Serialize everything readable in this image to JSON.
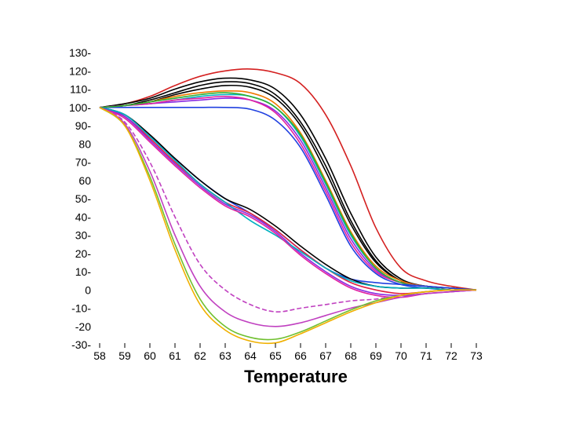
{
  "chart_data": {
    "type": "line",
    "title": "",
    "xlabel": "Temperature",
    "ylabel": "",
    "xlim": [
      58,
      73
    ],
    "ylim": [
      -30,
      130
    ],
    "x_ticks": [
      58,
      59,
      60,
      61,
      62,
      63,
      64,
      65,
      66,
      67,
      68,
      69,
      70,
      71,
      72,
      73
    ],
    "y_ticks": [
      {
        "value": 130,
        "label": "130-"
      },
      {
        "value": 120,
        "label": "120-"
      },
      {
        "value": 110,
        "label": "110-"
      },
      {
        "value": 100,
        "label": "100-"
      },
      {
        "value": 90,
        "label": "90-"
      },
      {
        "value": 80,
        "label": "80"
      },
      {
        "value": 70,
        "label": "70-"
      },
      {
        "value": 60,
        "label": "60"
      },
      {
        "value": 50,
        "label": "50-"
      },
      {
        "value": 40,
        "label": "40-"
      },
      {
        "value": 30,
        "label": "30-"
      },
      {
        "value": 20,
        "label": "20-"
      },
      {
        "value": 10,
        "label": "10-"
      },
      {
        "value": 0,
        "label": "0"
      },
      {
        "value": -10,
        "label": "-10-"
      },
      {
        "value": -20,
        "label": "-20"
      },
      {
        "value": -30,
        "label": "-30-"
      }
    ],
    "grid": false,
    "legend": "none",
    "series": [
      {
        "color": "#d42020",
        "dash": "",
        "x": [
          58,
          59,
          60,
          61,
          62,
          63,
          64,
          65,
          66,
          67,
          68,
          69,
          70,
          71,
          72,
          73
        ],
        "y": [
          100,
          102,
          106,
          112,
          117,
          120,
          121,
          119,
          113,
          96,
          68,
          34,
          12,
          5,
          2,
          0
        ]
      },
      {
        "color": "#000000",
        "dash": "",
        "x": [
          58,
          59,
          60,
          61,
          62,
          63,
          64,
          65,
          66,
          67,
          68,
          69,
          70,
          71,
          72,
          73
        ],
        "y": [
          100,
          102,
          105,
          110,
          114,
          116,
          115,
          110,
          96,
          72,
          42,
          18,
          6,
          2,
          1,
          0
        ]
      },
      {
        "color": "#000000",
        "dash": "",
        "x": [
          58,
          59,
          60,
          61,
          62,
          63,
          64,
          65,
          66,
          67,
          68,
          69,
          70,
          71,
          72,
          73
        ],
        "y": [
          100,
          101,
          104,
          108,
          112,
          114,
          113,
          107,
          92,
          68,
          38,
          16,
          5,
          2,
          1,
          0
        ]
      },
      {
        "color": "#000000",
        "dash": "",
        "x": [
          58,
          59,
          60,
          61,
          62,
          63,
          64,
          65,
          66,
          67,
          68,
          69,
          70,
          71,
          72,
          73
        ],
        "y": [
          100,
          101,
          103,
          107,
          110,
          112,
          111,
          105,
          90,
          65,
          36,
          15,
          5,
          2,
          1,
          0
        ]
      },
      {
        "color": "#f07800",
        "dash": "",
        "x": [
          58,
          59,
          60,
          61,
          62,
          63,
          64,
          65,
          66,
          67,
          68,
          69,
          70,
          71,
          72,
          73
        ],
        "y": [
          100,
          101,
          103,
          106,
          108,
          109,
          108,
          102,
          86,
          60,
          32,
          13,
          5,
          2,
          1,
          0
        ]
      },
      {
        "color": "#00b0c0",
        "dash": "",
        "x": [
          58,
          59,
          60,
          61,
          62,
          63,
          64,
          65,
          66,
          67,
          68,
          69,
          70,
          71,
          72,
          73
        ],
        "y": [
          100,
          101,
          102,
          104,
          106,
          107,
          106,
          100,
          84,
          58,
          30,
          12,
          4,
          2,
          1,
          0
        ]
      },
      {
        "color": "#8a2be2",
        "dash": "",
        "x": [
          58,
          59,
          60,
          61,
          62,
          63,
          64,
          65,
          66,
          67,
          68,
          69,
          70,
          71,
          72,
          73
        ],
        "y": [
          100,
          101,
          102,
          103,
          104,
          105,
          104,
          98,
          82,
          56,
          28,
          11,
          4,
          2,
          1,
          0
        ]
      },
      {
        "color": "#2040e0",
        "dash": "",
        "x": [
          58,
          59,
          60,
          61,
          62,
          63,
          64,
          65,
          66,
          67,
          68,
          69,
          70,
          71,
          72,
          73
        ],
        "y": [
          100,
          100,
          100,
          100,
          100,
          100,
          99,
          93,
          78,
          52,
          24,
          9,
          3,
          1,
          0,
          0
        ]
      },
      {
        "color": "#e020a0",
        "dash": "",
        "x": [
          58,
          59,
          60,
          61,
          62,
          63,
          64,
          65,
          66,
          67,
          68,
          69,
          70,
          71,
          72,
          73
        ],
        "y": [
          100,
          101,
          102,
          104,
          105,
          106,
          104,
          97,
          80,
          54,
          26,
          10,
          4,
          2,
          1,
          0
        ]
      },
      {
        "color": "#30b030",
        "dash": "",
        "x": [
          58,
          59,
          60,
          61,
          62,
          63,
          64,
          65,
          66,
          67,
          68,
          69,
          70,
          71,
          72,
          73
        ],
        "y": [
          100,
          101,
          103,
          105,
          107,
          108,
          106,
          100,
          85,
          59,
          31,
          12,
          4,
          2,
          1,
          0
        ]
      },
      {
        "color": "#2040e0",
        "dash": "",
        "x": [
          58,
          59,
          60,
          61,
          62,
          63,
          64,
          65,
          66,
          67,
          68,
          69,
          70,
          71,
          72,
          73
        ],
        "y": [
          100,
          96,
          84,
          72,
          60,
          50,
          42,
          33,
          22,
          12,
          6,
          4,
          3,
          2,
          1,
          0
        ]
      },
      {
        "color": "#000000",
        "dash": "",
        "x": [
          58,
          59,
          60,
          61,
          62,
          63,
          64,
          65,
          66,
          67,
          68,
          69,
          70,
          71,
          72,
          73
        ],
        "y": [
          100,
          96,
          85,
          72,
          60,
          50,
          44,
          35,
          24,
          14,
          6,
          2,
          1,
          1,
          0,
          0
        ]
      },
      {
        "color": "#e02040",
        "dash": "",
        "x": [
          58,
          59,
          60,
          61,
          62,
          63,
          64,
          65,
          66,
          67,
          68,
          69,
          70,
          71,
          72,
          73
        ],
        "y": [
          100,
          95,
          83,
          70,
          58,
          48,
          42,
          33,
          22,
          12,
          4,
          0,
          -2,
          -1,
          0,
          0
        ]
      },
      {
        "color": "#8a2be2",
        "dash": "",
        "x": [
          58,
          59,
          60,
          61,
          62,
          63,
          64,
          65,
          66,
          67,
          68,
          69,
          70,
          71,
          72,
          73
        ],
        "y": [
          100,
          95,
          82,
          69,
          57,
          47,
          41,
          32,
          20,
          10,
          2,
          -2,
          -3,
          -2,
          -1,
          0
        ]
      },
      {
        "color": "#00b0c0",
        "dash": "",
        "x": [
          58,
          59,
          60,
          61,
          62,
          63,
          64,
          65,
          66,
          67,
          68,
          69,
          70,
          71,
          72,
          73
        ],
        "y": [
          100,
          96,
          84,
          71,
          58,
          48,
          38,
          30,
          21,
          12,
          5,
          2,
          1,
          1,
          0,
          0
        ]
      },
      {
        "color": "#e020a0",
        "dash": "",
        "x": [
          58,
          59,
          60,
          61,
          62,
          63,
          64,
          65,
          66,
          67,
          68,
          69,
          70,
          71,
          72,
          73
        ],
        "y": [
          100,
          94,
          81,
          68,
          56,
          46,
          40,
          31,
          19,
          9,
          1,
          -3,
          -4,
          -2,
          -1,
          0
        ]
      },
      {
        "color": "#c040c0",
        "dash": "6 3",
        "x": [
          58,
          59,
          60,
          61,
          62,
          63,
          64,
          65,
          66,
          67,
          68,
          69,
          70,
          71,
          72,
          73
        ],
        "y": [
          100,
          92,
          70,
          40,
          14,
          0,
          -8,
          -12,
          -10,
          -8,
          -6,
          -5,
          -3,
          -1,
          0,
          0
        ]
      },
      {
        "color": "#c040c0",
        "dash": "",
        "x": [
          58,
          59,
          60,
          61,
          62,
          63,
          64,
          65,
          66,
          67,
          68,
          69,
          70,
          71,
          72,
          73
        ],
        "y": [
          100,
          91,
          65,
          30,
          2,
          -12,
          -18,
          -20,
          -18,
          -14,
          -10,
          -7,
          -4,
          -2,
          -1,
          0
        ]
      },
      {
        "color": "#70c030",
        "dash": "",
        "x": [
          58,
          59,
          60,
          61,
          62,
          63,
          64,
          65,
          66,
          67,
          68,
          69,
          70,
          71,
          72,
          73
        ],
        "y": [
          100,
          90,
          62,
          25,
          -5,
          -20,
          -26,
          -27,
          -23,
          -17,
          -11,
          -6,
          -3,
          -1,
          0,
          0
        ]
      },
      {
        "color": "#f0b000",
        "dash": "",
        "x": [
          58,
          59,
          60,
          61,
          62,
          63,
          64,
          65,
          66,
          67,
          68,
          69,
          70,
          71,
          72,
          73
        ],
        "y": [
          100,
          90,
          60,
          22,
          -8,
          -22,
          -28,
          -29,
          -24,
          -18,
          -12,
          -7,
          -3,
          -1,
          0,
          0
        ]
      }
    ]
  }
}
